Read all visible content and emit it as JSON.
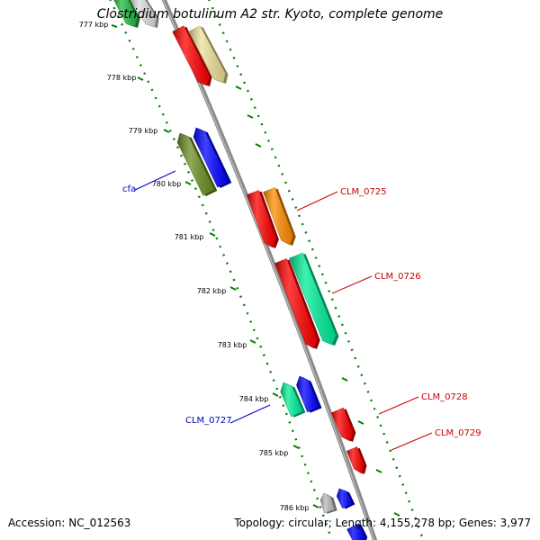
{
  "title": "Clostridium botulinum A2 str. Kyoto, complete genome",
  "footer": {
    "accession": "Accession: NC_012563",
    "stats": "Topology: circular; Length: 4,155,278 bp; Genes: 3,977"
  },
  "colors": {
    "backbone": "#8a8a8a",
    "dots": "#008000",
    "forward_label": "#cc0000",
    "reverse_label": "#0000cc"
  },
  "ticks": [
    "777 kbp",
    "778 kbp",
    "779 kbp",
    "780 kbp",
    "781 kbp",
    "782 kbp",
    "783 kbp",
    "784 kbp",
    "785 kbp",
    "786 kbp"
  ],
  "labels": [
    {
      "text": "cfa",
      "strand": "reverse"
    },
    {
      "text": "CLM_0725",
      "strand": "forward"
    },
    {
      "text": "CLM_0726",
      "strand": "forward"
    },
    {
      "text": "CLM_0727",
      "strand": "reverse"
    },
    {
      "text": "CLM_0728",
      "strand": "forward"
    },
    {
      "text": "CLM_0729",
      "strand": "forward"
    }
  ],
  "genes": [
    {
      "name": "gene-a-green",
      "color": "#22bb44"
    },
    {
      "name": "gene-b-white",
      "color": "#dddddd"
    },
    {
      "name": "gene-c-red",
      "color": "#ff0000"
    },
    {
      "name": "gene-d-khaki",
      "color": "#eee29a"
    },
    {
      "name": "gene-cfa-olive",
      "color": "#6b8e23"
    },
    {
      "name": "gene-e-blue",
      "color": "#0000ff"
    },
    {
      "name": "gene-f-red",
      "color": "#ff0000"
    },
    {
      "name": "gene-g-orange",
      "color": "#ff8c00"
    },
    {
      "name": "gene-h-red",
      "color": "#ff0000"
    },
    {
      "name": "gene-i-aqua",
      "color": "#00ee99"
    },
    {
      "name": "gene-j-aqua",
      "color": "#00ee99"
    },
    {
      "name": "gene-k-blue",
      "color": "#0000ff"
    },
    {
      "name": "gene-l-red",
      "color": "#ff0000"
    },
    {
      "name": "gene-m-red",
      "color": "#ff0000"
    },
    {
      "name": "gene-n-grey",
      "color": "#bbbbbb"
    },
    {
      "name": "gene-o-blue",
      "color": "#0000ff"
    },
    {
      "name": "gene-p-blue",
      "color": "#0000ff"
    }
  ]
}
